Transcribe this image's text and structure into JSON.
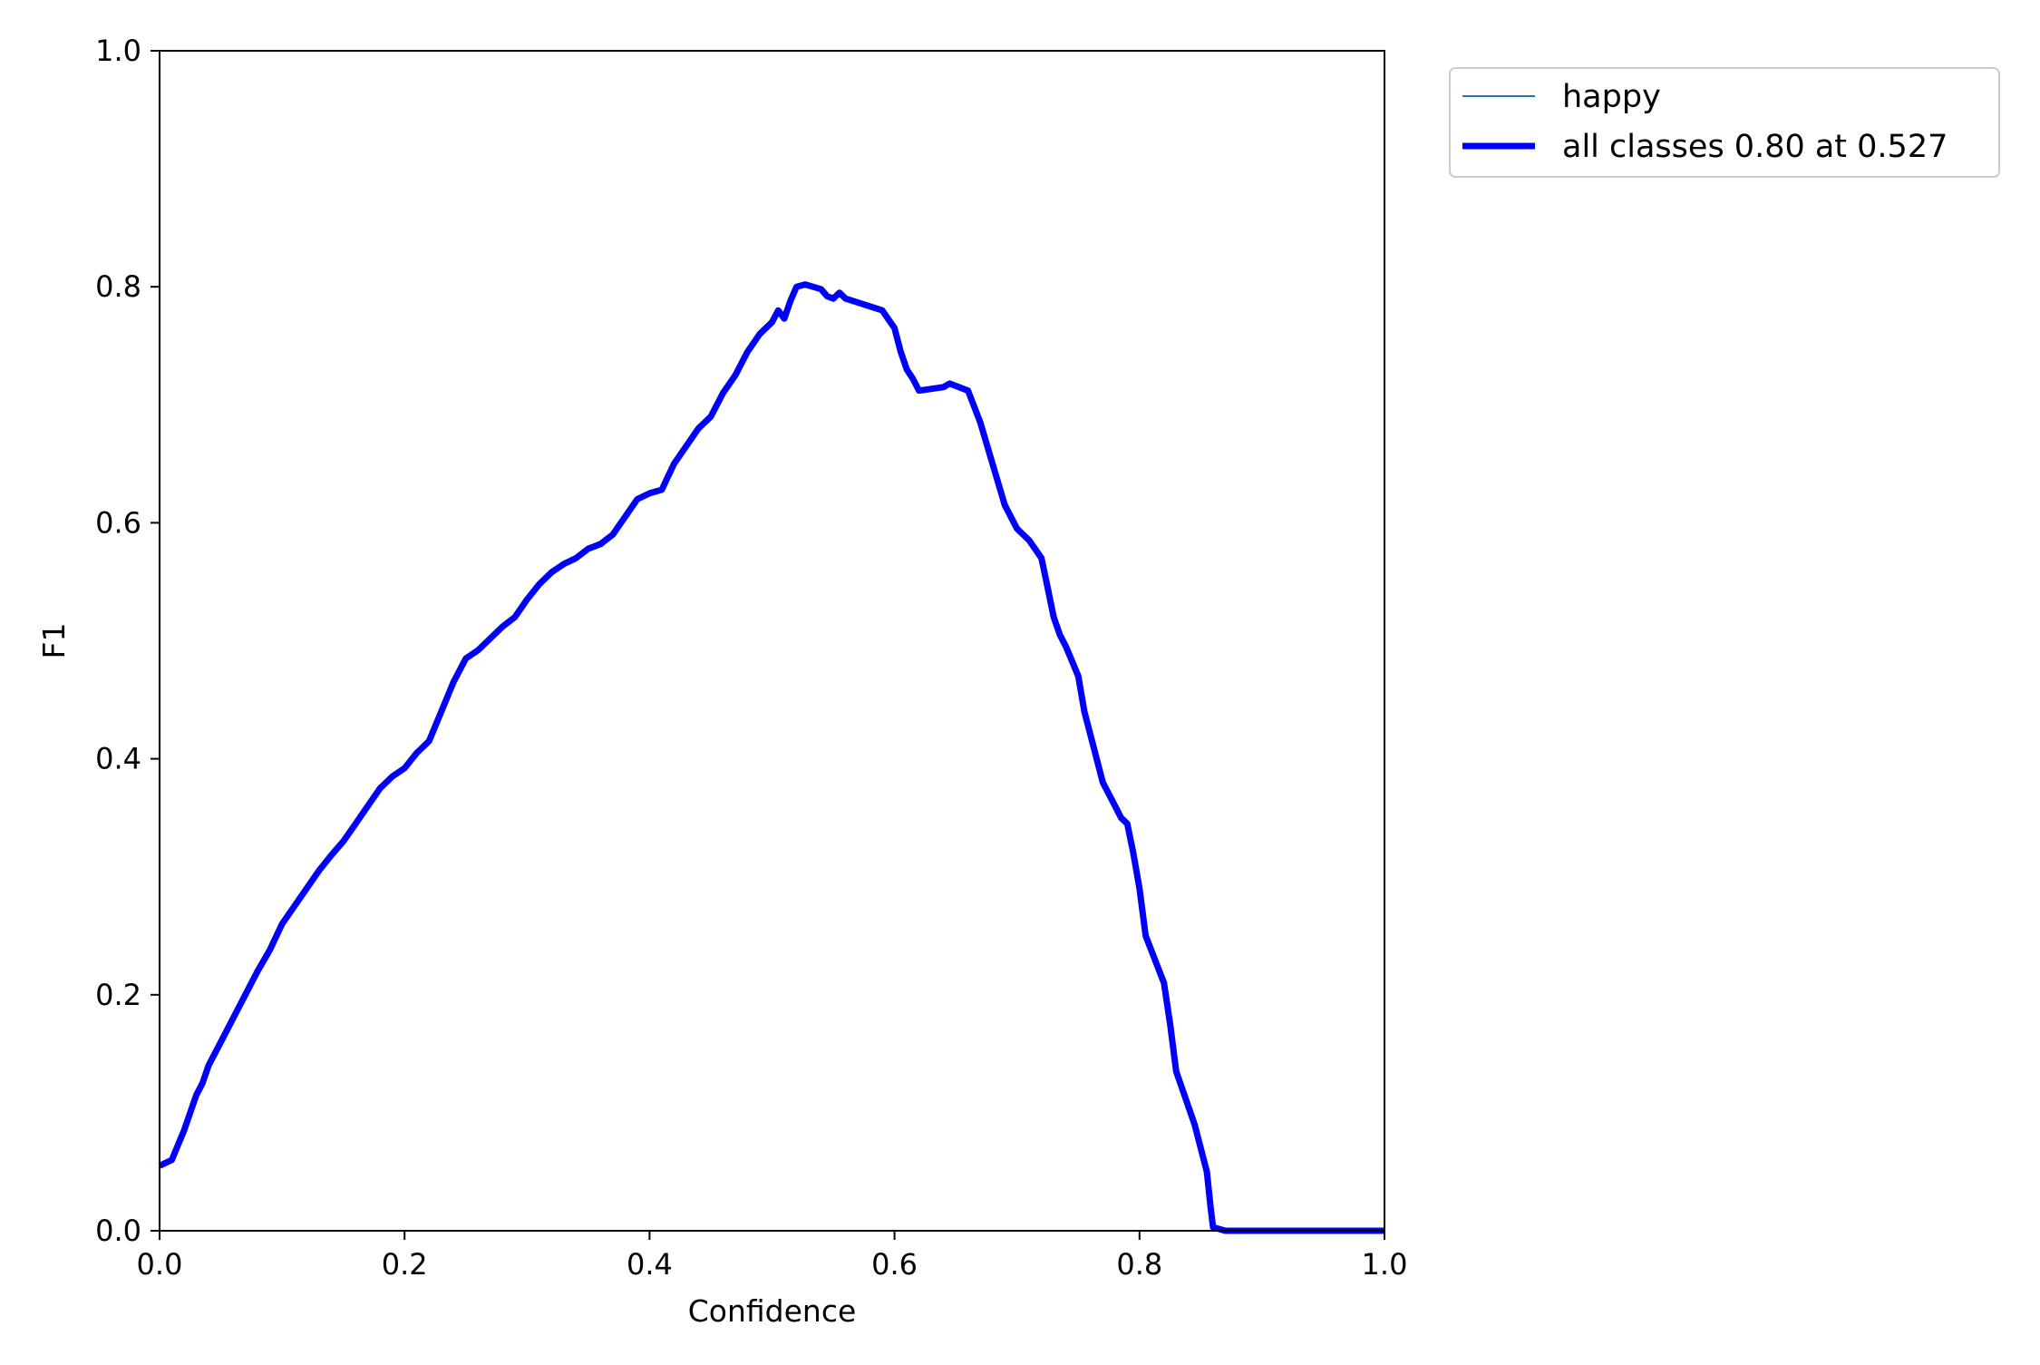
{
  "chart_data": {
    "type": "line",
    "title": "",
    "xlabel": "Confidence",
    "ylabel": "F1",
    "xlim": [
      0,
      1
    ],
    "ylim": [
      0,
      1
    ],
    "xticks": [
      "0.0",
      "0.2",
      "0.4",
      "0.6",
      "0.8",
      "1.0"
    ],
    "yticks": [
      "0.0",
      "0.2",
      "0.4",
      "0.6",
      "0.8",
      "1.0"
    ],
    "grid": false,
    "legend_position": "outside top-right",
    "series": [
      {
        "name": "happy",
        "color": "#1f77b4",
        "x": [
          0.0,
          0.01,
          0.02,
          0.03,
          0.035,
          0.04,
          0.05,
          0.06,
          0.07,
          0.08,
          0.09,
          0.1,
          0.11,
          0.12,
          0.13,
          0.14,
          0.15,
          0.16,
          0.17,
          0.18,
          0.19,
          0.2,
          0.21,
          0.22,
          0.23,
          0.24,
          0.25,
          0.26,
          0.27,
          0.28,
          0.29,
          0.3,
          0.31,
          0.32,
          0.33,
          0.34,
          0.35,
          0.36,
          0.37,
          0.38,
          0.39,
          0.4,
          0.41,
          0.42,
          0.43,
          0.44,
          0.45,
          0.46,
          0.47,
          0.48,
          0.49,
          0.5,
          0.505,
          0.51,
          0.515,
          0.52,
          0.527,
          0.54,
          0.545,
          0.55,
          0.555,
          0.56,
          0.59,
          0.6,
          0.605,
          0.61,
          0.615,
          0.62,
          0.64,
          0.645,
          0.65,
          0.66,
          0.67,
          0.68,
          0.69,
          0.7,
          0.71,
          0.72,
          0.725,
          0.73,
          0.735,
          0.74,
          0.75,
          0.755,
          0.76,
          0.77,
          0.78,
          0.785,
          0.79,
          0.795,
          0.8,
          0.805,
          0.82,
          0.825,
          0.83,
          0.845,
          0.855,
          0.858,
          0.86,
          0.87,
          0.9,
          0.95,
          1.0
        ],
        "values": [
          0.055,
          0.06,
          0.085,
          0.115,
          0.125,
          0.14,
          0.16,
          0.18,
          0.2,
          0.22,
          0.238,
          0.26,
          0.275,
          0.29,
          0.305,
          0.318,
          0.33,
          0.345,
          0.36,
          0.375,
          0.385,
          0.392,
          0.405,
          0.415,
          0.44,
          0.465,
          0.485,
          0.492,
          0.502,
          0.512,
          0.52,
          0.535,
          0.548,
          0.558,
          0.565,
          0.57,
          0.578,
          0.582,
          0.59,
          0.605,
          0.62,
          0.625,
          0.628,
          0.65,
          0.665,
          0.68,
          0.69,
          0.71,
          0.725,
          0.745,
          0.76,
          0.77,
          0.78,
          0.773,
          0.788,
          0.8,
          0.802,
          0.798,
          0.792,
          0.79,
          0.795,
          0.79,
          0.78,
          0.765,
          0.745,
          0.73,
          0.722,
          0.712,
          0.715,
          0.718,
          0.716,
          0.712,
          0.685,
          0.65,
          0.615,
          0.595,
          0.585,
          0.57,
          0.545,
          0.52,
          0.505,
          0.495,
          0.47,
          0.44,
          0.42,
          0.38,
          0.36,
          0.35,
          0.345,
          0.32,
          0.29,
          0.25,
          0.21,
          0.175,
          0.135,
          0.09,
          0.05,
          0.02,
          0.003,
          0.0,
          0.0,
          0.0,
          0.0
        ]
      },
      {
        "name": "all classes 0.80 at 0.527",
        "color": "#0000ff",
        "x": [
          0.0,
          0.01,
          0.02,
          0.03,
          0.035,
          0.04,
          0.05,
          0.06,
          0.07,
          0.08,
          0.09,
          0.1,
          0.11,
          0.12,
          0.13,
          0.14,
          0.15,
          0.16,
          0.17,
          0.18,
          0.19,
          0.2,
          0.21,
          0.22,
          0.23,
          0.24,
          0.25,
          0.26,
          0.27,
          0.28,
          0.29,
          0.3,
          0.31,
          0.32,
          0.33,
          0.34,
          0.35,
          0.36,
          0.37,
          0.38,
          0.39,
          0.4,
          0.41,
          0.42,
          0.43,
          0.44,
          0.45,
          0.46,
          0.47,
          0.48,
          0.49,
          0.5,
          0.505,
          0.51,
          0.515,
          0.52,
          0.527,
          0.54,
          0.545,
          0.55,
          0.555,
          0.56,
          0.59,
          0.6,
          0.605,
          0.61,
          0.615,
          0.62,
          0.64,
          0.645,
          0.65,
          0.66,
          0.67,
          0.68,
          0.69,
          0.7,
          0.71,
          0.72,
          0.725,
          0.73,
          0.735,
          0.74,
          0.75,
          0.755,
          0.76,
          0.77,
          0.78,
          0.785,
          0.79,
          0.795,
          0.8,
          0.805,
          0.82,
          0.825,
          0.83,
          0.845,
          0.855,
          0.858,
          0.86,
          0.87,
          0.9,
          0.95,
          1.0
        ],
        "values": [
          0.055,
          0.06,
          0.085,
          0.115,
          0.125,
          0.14,
          0.16,
          0.18,
          0.2,
          0.22,
          0.238,
          0.26,
          0.275,
          0.29,
          0.305,
          0.318,
          0.33,
          0.345,
          0.36,
          0.375,
          0.385,
          0.392,
          0.405,
          0.415,
          0.44,
          0.465,
          0.485,
          0.492,
          0.502,
          0.512,
          0.52,
          0.535,
          0.548,
          0.558,
          0.565,
          0.57,
          0.578,
          0.582,
          0.59,
          0.605,
          0.62,
          0.625,
          0.628,
          0.65,
          0.665,
          0.68,
          0.69,
          0.71,
          0.725,
          0.745,
          0.76,
          0.77,
          0.78,
          0.773,
          0.788,
          0.8,
          0.802,
          0.798,
          0.792,
          0.79,
          0.795,
          0.79,
          0.78,
          0.765,
          0.745,
          0.73,
          0.722,
          0.712,
          0.715,
          0.718,
          0.716,
          0.712,
          0.685,
          0.65,
          0.615,
          0.595,
          0.585,
          0.57,
          0.545,
          0.52,
          0.505,
          0.495,
          0.47,
          0.44,
          0.42,
          0.38,
          0.36,
          0.35,
          0.345,
          0.32,
          0.29,
          0.25,
          0.21,
          0.175,
          0.135,
          0.09,
          0.05,
          0.02,
          0.003,
          0.0,
          0.0,
          0.0,
          0.0
        ]
      }
    ]
  }
}
